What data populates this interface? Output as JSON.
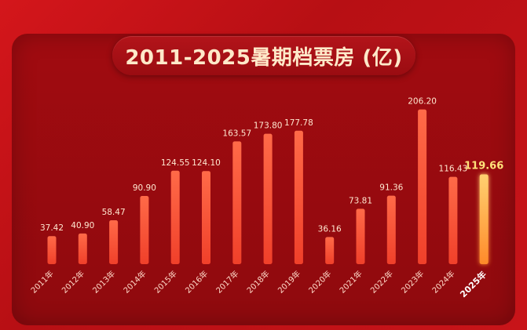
{
  "chart_data": {
    "type": "bar",
    "title": "2011-2025暑期档票房 (亿)",
    "categories": [
      "2011年",
      "2012年",
      "2013年",
      "2014年",
      "2015年",
      "2016年",
      "2017年",
      "2018年",
      "2019年",
      "2020年",
      "2021年",
      "2022年",
      "2023年",
      "2024年",
      "2025年"
    ],
    "value_labels": [
      "37.42",
      "40.90",
      "58.47",
      "90.90",
      "124.55",
      "124.10",
      "163.57",
      "173.80",
      "177.78",
      "36.16",
      "73.81",
      "91.36",
      "206.20",
      "116.43",
      "119.66"
    ],
    "values": [
      37.42,
      40.9,
      58.47,
      90.9,
      124.55,
      124.1,
      163.57,
      173.8,
      177.78,
      36.16,
      73.81,
      91.36,
      206.2,
      116.43,
      119.66
    ],
    "highlight_index": 14,
    "ylim": [
      0,
      210
    ],
    "grid": false,
    "colors": {
      "bar": "#ff5a3c",
      "bar_highlight": "#ffb347",
      "label": "#ffe7d0",
      "label_highlight": "#ffe27a",
      "tick": "#ffd9c8"
    }
  }
}
